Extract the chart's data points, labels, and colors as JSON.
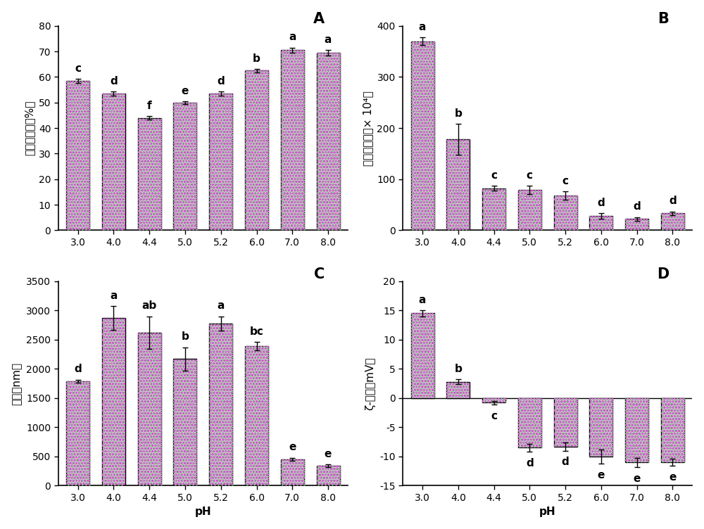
{
  "ph_labels": [
    "3.0",
    "4.0",
    "4.4",
    "5.0",
    "5.2",
    "6.0",
    "7.0",
    "8.0"
  ],
  "A_values": [
    58.5,
    53.5,
    44.0,
    50.0,
    53.5,
    62.5,
    70.5,
    69.5
  ],
  "A_errors": [
    0.8,
    0.8,
    0.6,
    0.5,
    0.8,
    0.7,
    1.0,
    1.0
  ],
  "A_letters": [
    "c",
    "d",
    "f",
    "e",
    "d",
    "b",
    "a",
    "a"
  ],
  "A_ylabel": "蛋白溶解度（%）",
  "A_title": "A",
  "A_ylim": [
    0,
    80
  ],
  "A_yticks": [
    0,
    10,
    20,
    30,
    40,
    50,
    60,
    70,
    80
  ],
  "B_values": [
    370,
    178,
    82,
    79,
    68,
    28,
    22,
    33
  ],
  "B_errors": [
    8,
    30,
    5,
    8,
    8,
    5,
    4,
    4
  ],
  "B_letters": [
    "a",
    "b",
    "c",
    "c",
    "c",
    "d",
    "d",
    "d"
  ],
  "B_ylabel": "表面疏水性（× 10⁴）",
  "B_title": "B",
  "B_ylim": [
    0,
    400
  ],
  "B_yticks": [
    0,
    100,
    200,
    300,
    400
  ],
  "C_values": [
    1790,
    2870,
    2620,
    2170,
    2780,
    2390,
    450,
    340
  ],
  "C_errors": [
    25,
    200,
    280,
    200,
    120,
    70,
    30,
    20
  ],
  "C_letters": [
    "d",
    "a",
    "ab",
    "b",
    "a",
    "bc",
    "e",
    "e"
  ],
  "C_ylabel": "粒径（nm）",
  "C_title": "C",
  "C_ylim": [
    0,
    3500
  ],
  "C_yticks": [
    0,
    500,
    1000,
    1500,
    2000,
    2500,
    3000,
    3500
  ],
  "D_values": [
    14.5,
    2.8,
    -0.8,
    -8.5,
    -8.3,
    -10.0,
    -11.0,
    -11.0
  ],
  "D_errors": [
    0.5,
    0.4,
    0.3,
    0.7,
    0.7,
    1.2,
    0.8,
    0.6
  ],
  "D_letters": [
    "a",
    "b",
    "c",
    "d",
    "d",
    "e",
    "e",
    "e"
  ],
  "D_ylabel": "ζ-电位（mV）",
  "D_title": "D",
  "D_ylim": [
    -15,
    20
  ],
  "D_yticks": [
    -15,
    -10,
    -5,
    0,
    5,
    10,
    15,
    20
  ],
  "xlabel": "pH",
  "bar_face_color": "#c8c8c8",
  "bar_edge_color": "#000000",
  "figure_bg": "#ffffff",
  "font_size_labels": 11,
  "font_size_title": 15,
  "font_size_ticks": 10,
  "font_size_letters": 11
}
